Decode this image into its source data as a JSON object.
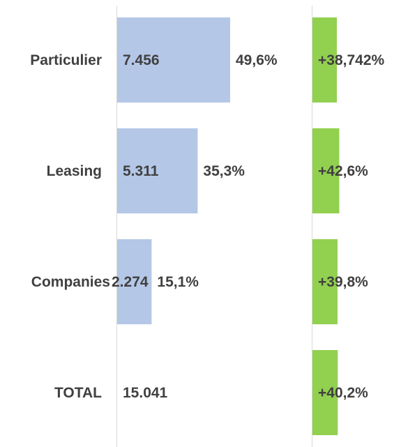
{
  "chart_data": {
    "type": "bar",
    "orientation": "horizontal",
    "categories": [
      "Particulier",
      "Leasing",
      "Companies",
      "TOTAL"
    ],
    "volume_labels": [
      "7.456",
      "5.311",
      "2.274",
      "15.041"
    ],
    "share_labels": [
      "49,6%",
      "35,3%",
      "15,1%",
      ""
    ],
    "growth_labels": [
      "+38,742%",
      "+42,6%",
      "+39,8%",
      "+40,2%"
    ],
    "series": [
      {
        "values": [
          7456,
          5311,
          2274,
          null
        ],
        "color": "#b4c7e7"
      },
      {
        "values": [
          38.742,
          42.6,
          39.8,
          40.2
        ],
        "color": "#92d050"
      }
    ],
    "grid": false,
    "legend": "none"
  }
}
